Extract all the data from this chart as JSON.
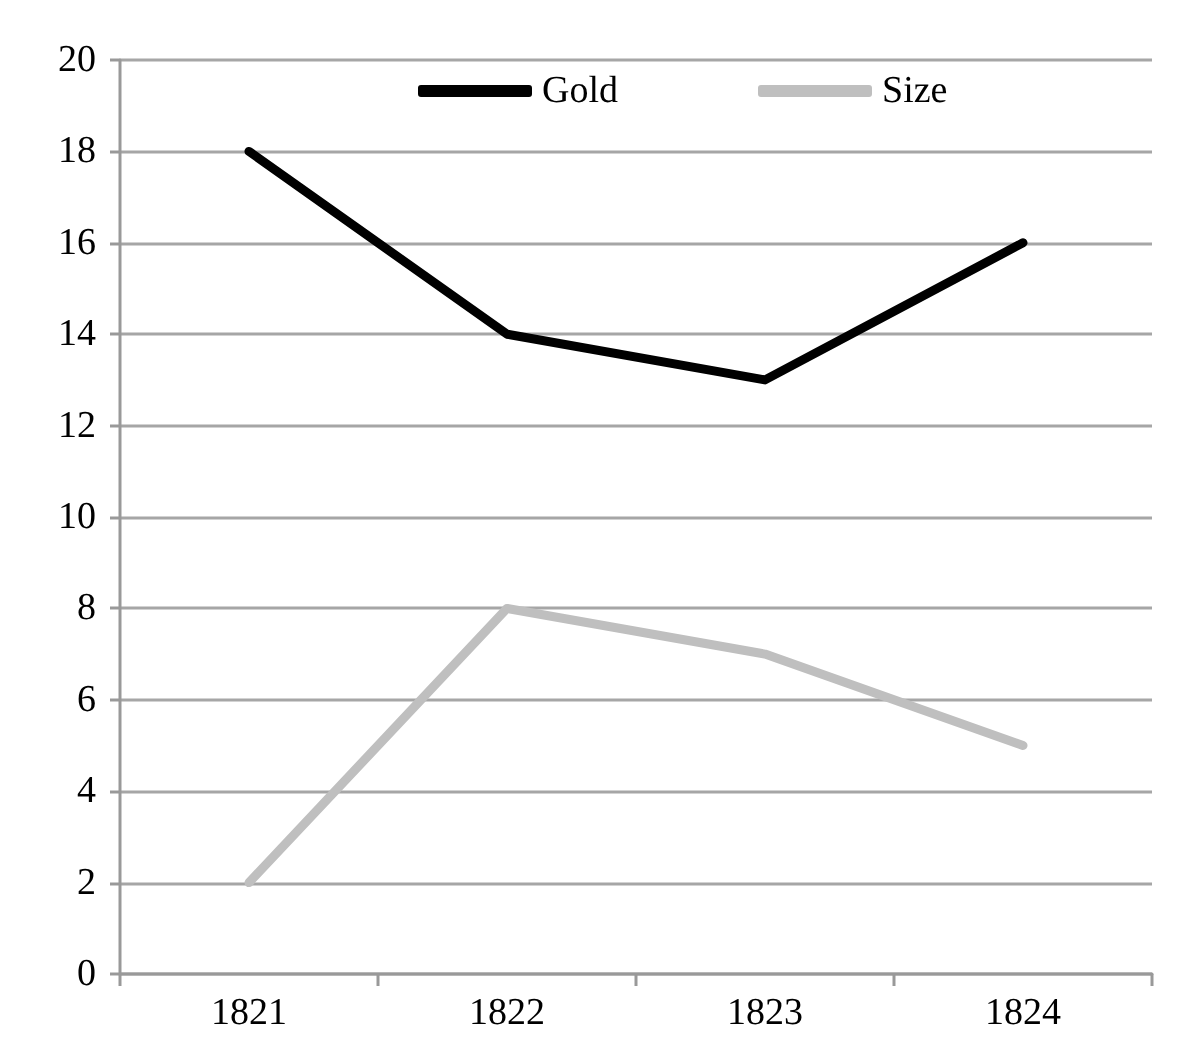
{
  "chart_data": {
    "type": "line",
    "categories": [
      "1821",
      "1822",
      "1823",
      "1824"
    ],
    "series": [
      {
        "name": "Gold",
        "color": "#000000",
        "values": [
          18,
          14,
          13,
          16
        ]
      },
      {
        "name": "Size",
        "color": "#bfbfbf",
        "values": [
          2,
          8,
          7,
          5
        ]
      }
    ],
    "ylim": [
      0,
      20
    ],
    "yticks": [
      0,
      2,
      4,
      6,
      8,
      10,
      12,
      14,
      16,
      18,
      20
    ],
    "grid": "y",
    "legend": "top",
    "marker": "none",
    "line_style": "solid"
  }
}
